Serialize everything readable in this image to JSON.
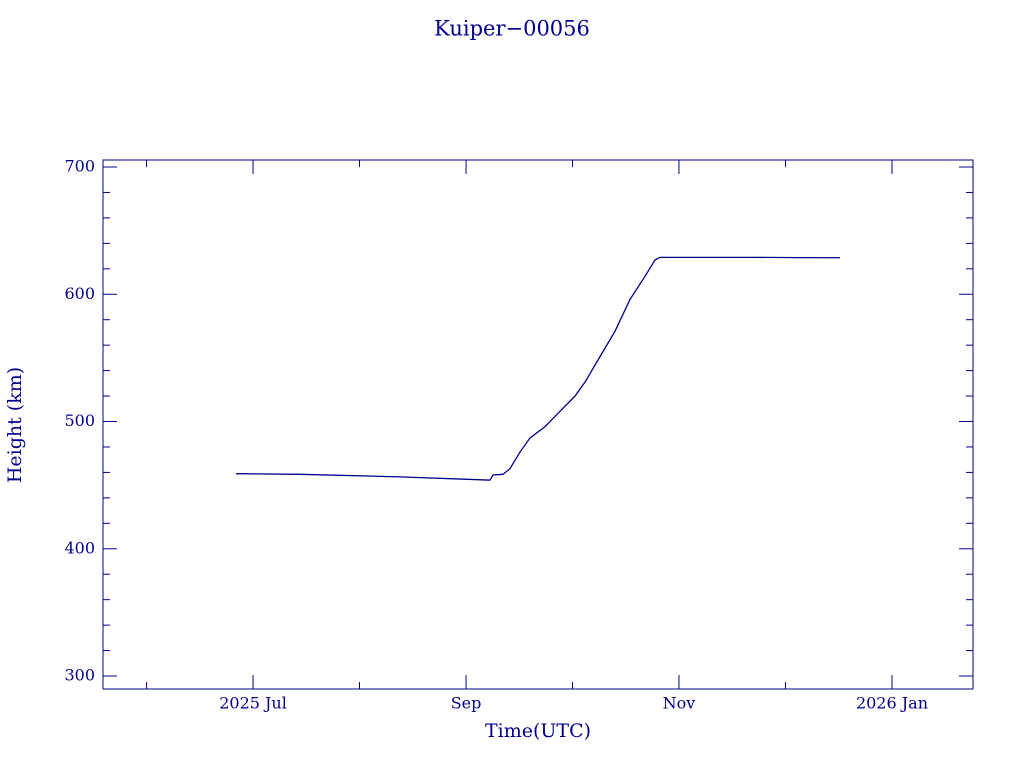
{
  "chart_data": {
    "type": "line",
    "title": "Kuiper−00056",
    "x_label": "Time(UTC)",
    "y_label": "Height (km)",
    "color": "#00008b",
    "x": [
      2025.4867,
      2025.5368,
      2025.615,
      2025.6839,
      2025.6854,
      2025.6878,
      2025.6956,
      2025.7011,
      2025.7089,
      2025.7167,
      2025.7285,
      2025.7402,
      2025.752,
      2025.7598,
      2025.7715,
      2025.7833,
      2025.795,
      2025.8067,
      2025.8146,
      2025.8185,
      2025.8498,
      2025.8889,
      2025.928,
      2025.9593
    ],
    "series": [
      {
        "name": "Height",
        "color": "#00008b",
        "values": [
          459,
          458.5,
          456.5,
          454,
          454,
          458,
          458.5,
          463,
          476,
          487,
          496,
          508,
          520,
          531,
          551,
          571,
          596,
          614,
          627,
          629,
          629,
          629,
          628.8,
          628.7
        ]
      }
    ],
    "xlim": [
      2025.3826,
      2026.0634
    ],
    "ylim": [
      289.8,
      705.5
    ],
    "xticks": [
      {
        "value": 2025.5,
        "label": "2025 Jul"
      },
      {
        "value": 2025.6667,
        "label": "Sep"
      },
      {
        "value": 2025.8333,
        "label": "Nov"
      },
      {
        "value": 2026.0,
        "label": "2026 Jan"
      }
    ],
    "xminorticks": [
      2025.4167,
      2025.5833,
      2025.75,
      2025.9167
    ],
    "yticks": [
      300,
      400,
      500,
      600,
      700
    ],
    "yminorticks": [
      320,
      340,
      360,
      380,
      420,
      440,
      460,
      480,
      520,
      540,
      560,
      580,
      620,
      640,
      660,
      680
    ]
  }
}
